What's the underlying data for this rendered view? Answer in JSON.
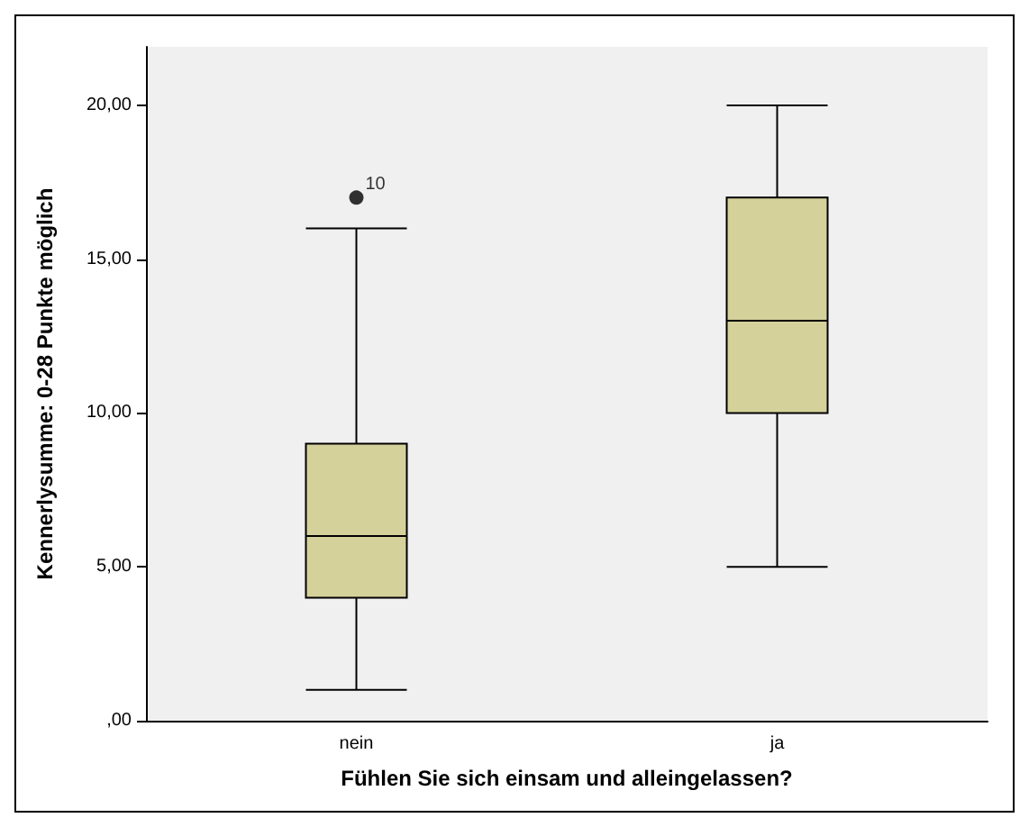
{
  "chart_data": {
    "type": "box",
    "xlabel": "Fühlen Sie sich einsam und alleingelassen?",
    "ylabel": "Kennerlysumme: 0-28 Punkte möglich",
    "categories": [
      "nein",
      "ja"
    ],
    "color": "#d5d19b",
    "boxes": [
      {
        "low": 1,
        "q1": 4,
        "median": 6,
        "q3": 9,
        "high": 16,
        "outliers": [
          17
        ]
      },
      {
        "low": 5,
        "q1": 10,
        "median": 13,
        "q3": 17,
        "high": 20
      }
    ],
    "annotations": [
      "10"
    ],
    "ylim": [
      0,
      21.9
    ],
    "yticks": [
      {
        "value": 0,
        "label": ",00"
      },
      {
        "value": 5,
        "label": "5,00"
      },
      {
        "value": 10,
        "label": "10,00"
      },
      {
        "value": 15,
        "label": "15,00"
      },
      {
        "value": 20,
        "label": "20,00"
      }
    ],
    "grid": false
  }
}
